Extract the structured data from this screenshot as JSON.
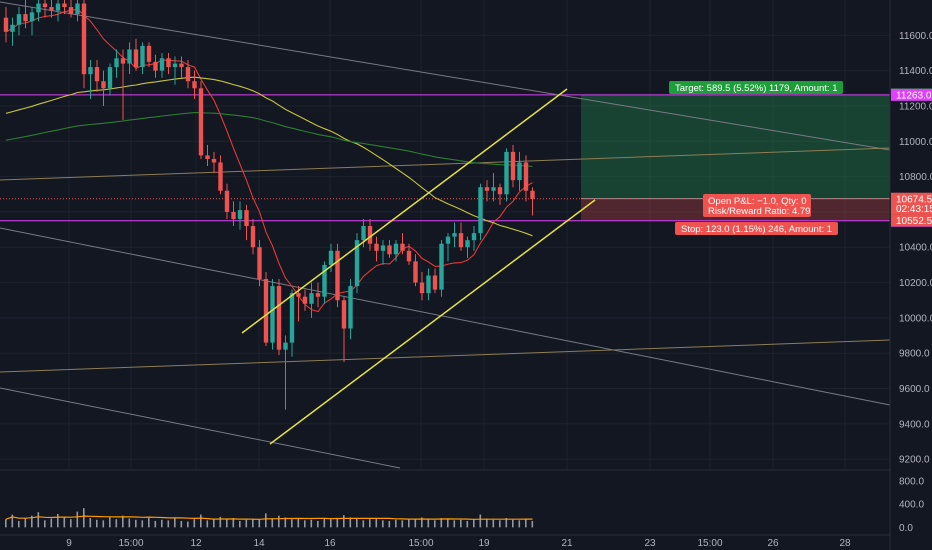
{
  "chart_data": {
    "type": "candlestick",
    "price_axis": {
      "ylim": [
        9150,
        11800
      ],
      "ticks": [
        9200.0,
        9400.0,
        9600.0,
        9800.0,
        10000.0,
        10200.0,
        10400.0,
        10600.0,
        10800.0,
        11000.0,
        11200.0,
        11400.0,
        11600.0
      ],
      "tick_labels": [
        "9200.0",
        "9400.0",
        "9600.0",
        "9800.0",
        "10000.0",
        "10200.0",
        "10400.0",
        "10600.0",
        "10800.0",
        "11000.0",
        "11200.0",
        "11400.0",
        "11600.0"
      ]
    },
    "volume_axis": {
      "ylim": [
        -80,
        900
      ],
      "ticks": [
        0,
        400,
        800
      ],
      "tick_labels": [
        "0.0",
        "400.0",
        "800.0"
      ]
    },
    "time_axis": {
      "labels": [
        "9",
        "15:00",
        "12",
        "14",
        "16",
        "15:00",
        "19",
        "21",
        "23",
        "15:00",
        "26",
        "28"
      ]
    },
    "price_tags": [
      {
        "value": 11265.0,
        "text": "11265.0",
        "color": "#1e9e3a"
      },
      {
        "value": 11263.0,
        "text": "11263.0",
        "color": "#e040fb"
      },
      {
        "value": 10675.5,
        "text": "10675.5",
        "color": "#363a45"
      },
      {
        "value": 10674.5,
        "text": "10674.5",
        "color": "#ef5350"
      },
      {
        "value": 10620,
        "text": "02:43:15",
        "color": "#ef5350"
      },
      {
        "value": 10550.0,
        "text": "10550.0",
        "color": "#e040fb"
      },
      {
        "value": 10552.5,
        "text": "10552.5",
        "color": "#ef5350"
      }
    ],
    "position": {
      "entry": 10675.5,
      "target": 11265.0,
      "stop": 10552.5,
      "target_label": "Target: 589.5 (5.52%) 1179, Amount: 1",
      "stop_label": "Stop: 123.0 (1.15%) 246, Amount: 1",
      "pnl_label_line1": "Open P&L: −1.0, Qty: 0",
      "pnl_label_line2": "Risk/Reward Ratio: 4.79"
    },
    "horizontal_levels": [
      11263.0,
      10550.0
    ],
    "candles": [
      {
        "o": 11700,
        "h": 11760,
        "l": 11560,
        "c": 11620
      },
      {
        "o": 11620,
        "h": 11700,
        "l": 11540,
        "c": 11660
      },
      {
        "o": 11660,
        "h": 11760,
        "l": 11600,
        "c": 11720
      },
      {
        "o": 11720,
        "h": 11800,
        "l": 11640,
        "c": 11680
      },
      {
        "o": 11680,
        "h": 11760,
        "l": 11600,
        "c": 11730
      },
      {
        "o": 11730,
        "h": 11800,
        "l": 11680,
        "c": 11780
      },
      {
        "o": 11780,
        "h": 11800,
        "l": 11700,
        "c": 11760
      },
      {
        "o": 11760,
        "h": 11800,
        "l": 11700,
        "c": 11740
      },
      {
        "o": 11740,
        "h": 11800,
        "l": 11680,
        "c": 11780
      },
      {
        "o": 11780,
        "h": 11800,
        "l": 11720,
        "c": 11760
      },
      {
        "o": 11760,
        "h": 11800,
        "l": 11700,
        "c": 11720
      },
      {
        "o": 11720,
        "h": 11800,
        "l": 11680,
        "c": 11780
      },
      {
        "o": 11780,
        "h": 11800,
        "l": 11300,
        "c": 11380
      },
      {
        "o": 11380,
        "h": 11460,
        "l": 11240,
        "c": 11420
      },
      {
        "o": 11420,
        "h": 11460,
        "l": 11280,
        "c": 11340
      },
      {
        "o": 11340,
        "h": 11400,
        "l": 11200,
        "c": 11300
      },
      {
        "o": 11300,
        "h": 11440,
        "l": 11260,
        "c": 11420
      },
      {
        "o": 11420,
        "h": 11520,
        "l": 11360,
        "c": 11470
      },
      {
        "o": 11470,
        "h": 11520,
        "l": 11120,
        "c": 11440
      },
      {
        "o": 11440,
        "h": 11560,
        "l": 11380,
        "c": 11520
      },
      {
        "o": 11520,
        "h": 11580,
        "l": 11400,
        "c": 11420
      },
      {
        "o": 11420,
        "h": 11560,
        "l": 11380,
        "c": 11540
      },
      {
        "o": 11540,
        "h": 11560,
        "l": 11420,
        "c": 11450
      },
      {
        "o": 11450,
        "h": 11490,
        "l": 11360,
        "c": 11400
      },
      {
        "o": 11400,
        "h": 11500,
        "l": 11360,
        "c": 11470
      },
      {
        "o": 11470,
        "h": 11500,
        "l": 11380,
        "c": 11420
      },
      {
        "o": 11420,
        "h": 11480,
        "l": 11320,
        "c": 11440
      },
      {
        "o": 11440,
        "h": 11480,
        "l": 11360,
        "c": 11420
      },
      {
        "o": 11420,
        "h": 11460,
        "l": 11300,
        "c": 11340
      },
      {
        "o": 11340,
        "h": 11400,
        "l": 11240,
        "c": 11300
      },
      {
        "o": 11300,
        "h": 11340,
        "l": 10900,
        "c": 10920
      },
      {
        "o": 10920,
        "h": 10980,
        "l": 10860,
        "c": 10900
      },
      {
        "o": 10900,
        "h": 10940,
        "l": 10820,
        "c": 10880
      },
      {
        "o": 10880,
        "h": 10920,
        "l": 10700,
        "c": 10720
      },
      {
        "o": 10720,
        "h": 10760,
        "l": 10560,
        "c": 10600
      },
      {
        "o": 10600,
        "h": 10660,
        "l": 10520,
        "c": 10560
      },
      {
        "o": 10560,
        "h": 10660,
        "l": 10500,
        "c": 10610
      },
      {
        "o": 10610,
        "h": 10640,
        "l": 10440,
        "c": 10520
      },
      {
        "o": 10520,
        "h": 10560,
        "l": 10360,
        "c": 10400
      },
      {
        "o": 10400,
        "h": 10440,
        "l": 10180,
        "c": 10220
      },
      {
        "o": 10220,
        "h": 10260,
        "l": 9840,
        "c": 9860
      },
      {
        "o": 9860,
        "h": 10220,
        "l": 9820,
        "c": 10180
      },
      {
        "o": 10180,
        "h": 10220,
        "l": 9790,
        "c": 9820
      },
      {
        "o": 9820,
        "h": 9900,
        "l": 9480,
        "c": 9860
      },
      {
        "o": 9860,
        "h": 10160,
        "l": 9780,
        "c": 10140
      },
      {
        "o": 10140,
        "h": 10180,
        "l": 9980,
        "c": 10120
      },
      {
        "o": 10120,
        "h": 10160,
        "l": 10040,
        "c": 10080
      },
      {
        "o": 10080,
        "h": 10200,
        "l": 10000,
        "c": 10140
      },
      {
        "o": 10140,
        "h": 10200,
        "l": 10060,
        "c": 10120
      },
      {
        "o": 10120,
        "h": 10320,
        "l": 10080,
        "c": 10300
      },
      {
        "o": 10300,
        "h": 10420,
        "l": 10260,
        "c": 10380
      },
      {
        "o": 10380,
        "h": 10420,
        "l": 10060,
        "c": 10100
      },
      {
        "o": 10100,
        "h": 10120,
        "l": 9750,
        "c": 9940
      },
      {
        "o": 9940,
        "h": 10220,
        "l": 9880,
        "c": 10180
      },
      {
        "o": 10180,
        "h": 10480,
        "l": 10140,
        "c": 10440
      },
      {
        "o": 10440,
        "h": 10560,
        "l": 10400,
        "c": 10520
      },
      {
        "o": 10520,
        "h": 10560,
        "l": 10380,
        "c": 10420
      },
      {
        "o": 10420,
        "h": 10460,
        "l": 10320,
        "c": 10380
      },
      {
        "o": 10380,
        "h": 10440,
        "l": 10300,
        "c": 10410
      },
      {
        "o": 10410,
        "h": 10440,
        "l": 10340,
        "c": 10360
      },
      {
        "o": 10360,
        "h": 10440,
        "l": 10320,
        "c": 10420
      },
      {
        "o": 10420,
        "h": 10480,
        "l": 10360,
        "c": 10380
      },
      {
        "o": 10380,
        "h": 10420,
        "l": 10300,
        "c": 10320
      },
      {
        "o": 10320,
        "h": 10360,
        "l": 10180,
        "c": 10200
      },
      {
        "o": 10200,
        "h": 10260,
        "l": 10100,
        "c": 10140
      },
      {
        "o": 10140,
        "h": 10280,
        "l": 10100,
        "c": 10240
      },
      {
        "o": 10240,
        "h": 10280,
        "l": 10140,
        "c": 10160
      },
      {
        "o": 10160,
        "h": 10440,
        "l": 10120,
        "c": 10420
      },
      {
        "o": 10420,
        "h": 10480,
        "l": 10320,
        "c": 10460
      },
      {
        "o": 10460,
        "h": 10540,
        "l": 10400,
        "c": 10480
      },
      {
        "o": 10480,
        "h": 10540,
        "l": 10380,
        "c": 10400
      },
      {
        "o": 10400,
        "h": 10460,
        "l": 10340,
        "c": 10440
      },
      {
        "o": 10440,
        "h": 10520,
        "l": 10380,
        "c": 10480
      },
      {
        "o": 10480,
        "h": 10760,
        "l": 10440,
        "c": 10740
      },
      {
        "o": 10740,
        "h": 10780,
        "l": 10660,
        "c": 10720
      },
      {
        "o": 10720,
        "h": 10820,
        "l": 10660,
        "c": 10740
      },
      {
        "o": 10740,
        "h": 10760,
        "l": 10640,
        "c": 10700
      },
      {
        "o": 10700,
        "h": 10960,
        "l": 10660,
        "c": 10940
      },
      {
        "o": 10940,
        "h": 10980,
        "l": 10740,
        "c": 10780
      },
      {
        "o": 10780,
        "h": 10940,
        "l": 10720,
        "c": 10880
      },
      {
        "o": 10880,
        "h": 10920,
        "l": 10660,
        "c": 10720
      },
      {
        "o": 10720,
        "h": 10740,
        "l": 10580,
        "c": 10674.5
      }
    ],
    "moving_averages": [
      {
        "name": "",
        "color": "#e53935",
        "period": 9
      },
      {
        "name": "",
        "color": "#c9c33a",
        "period": 55
      },
      {
        "name": "",
        "color": "#2e7d32",
        "period": 100
      }
    ],
    "volume": [
      140,
      220,
      110,
      160,
      200,
      260,
      120,
      150,
      230,
      180,
      140,
      270,
      330,
      160,
      130,
      120,
      170,
      140,
      200,
      150,
      130,
      120,
      160,
      110,
      130,
      120,
      160,
      110,
      100,
      140,
      220,
      120,
      150,
      180,
      140,
      160,
      110,
      130,
      150,
      140,
      240,
      160,
      200,
      170,
      140,
      150,
      120,
      130,
      110,
      160,
      140,
      150,
      210,
      170,
      160,
      120,
      140,
      160,
      120,
      110,
      130,
      120,
      140,
      150,
      170,
      140,
      120,
      160,
      150,
      120,
      130,
      110,
      140,
      220,
      150,
      130,
      120,
      160,
      130,
      120,
      150,
      110
    ],
    "volume_ma_label": "",
    "trendlines": []
  }
}
